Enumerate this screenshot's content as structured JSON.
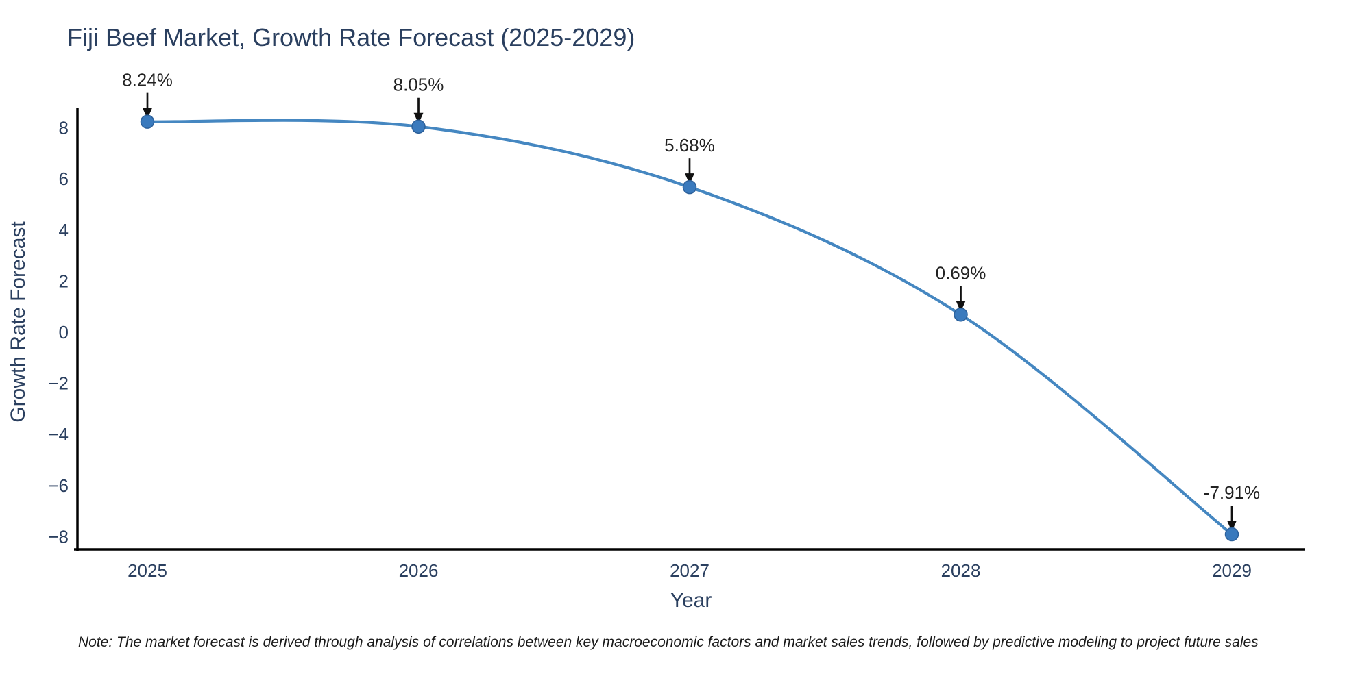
{
  "title": "Fiji Beef Market, Growth Rate Forecast (2025-2029)",
  "note": "Note: The market forecast is derived through analysis of correlations between key macroeconomic factors and market sales trends, followed by predictive modeling to project future sales",
  "chart_data": {
    "type": "line",
    "line_shape": "spline",
    "title": "Fiji Beef Market, Growth Rate Forecast (2025-2029)",
    "xlabel": "Year",
    "ylabel": "Growth Rate Forecast",
    "x": [
      2025,
      2026,
      2027,
      2028,
      2029
    ],
    "values": [
      8.24,
      8.05,
      5.68,
      0.69,
      -7.91
    ],
    "point_labels": [
      "8.24%",
      "8.05%",
      "5.68%",
      "0.69%",
      "-7.91%"
    ],
    "x_ticks": [
      "2025",
      "2026",
      "2027",
      "2028",
      "2029"
    ],
    "y_ticks": [
      8,
      6,
      4,
      2,
      0,
      -2,
      -4,
      -6,
      -8
    ],
    "ylim": [
      -8.6,
      8.8
    ],
    "grid": false,
    "legend": "none",
    "colors": {
      "line": "#4587c1",
      "marker": "#3a7abd",
      "marker_edge": "#2c609a",
      "axis_line": "#000000",
      "tick_text": "#2a3f5f",
      "annotation_text": "#222222",
      "arrow": "#111111"
    }
  }
}
